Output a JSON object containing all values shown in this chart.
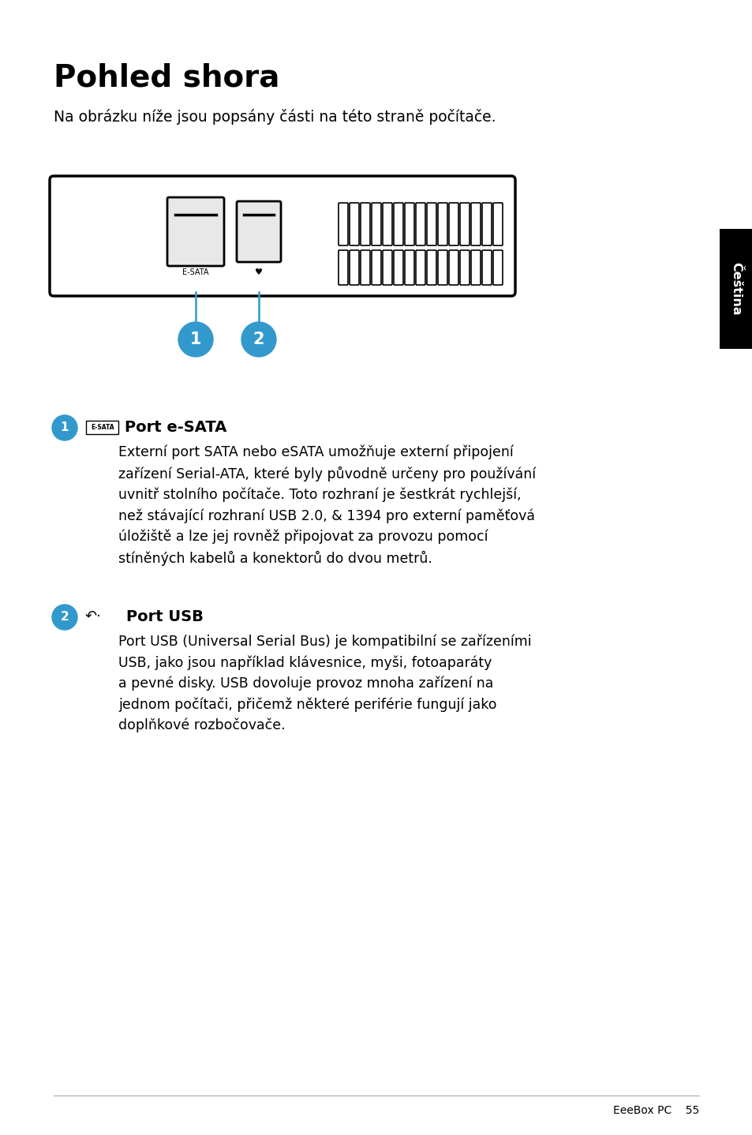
{
  "title": "Pohled shora",
  "subtitle": "Na obrázku níže jsou popsány části na této straně počítače.",
  "bg_color": "#ffffff",
  "page_width": 9.54,
  "page_height": 14.38,
  "tab_text": "Čeština",
  "tab_bg": "#000000",
  "tab_text_color": "#ffffff",
  "footer_text": "EeeBox PC    55",
  "section1_title": "Port e-SATA",
  "section1_body": "Externí port SATA nebo eSATA umožňuje externí připojení\nzařízení Serial-ATA, které byly původně určeny pro používání\nuvnitř stolního počítače. Toto rozhraní je šestkrát rychlejší,\nnež stávající rozhraní USB 2.0, & 1394 pro externí paměťová\núložiště a lze jej rovněž připojovat za provozu pomocí\nstíněných kabelů a konektorů do dvou metrů.",
  "section2_title": "Port USB",
  "section2_body": "Port USB (Universal Serial Bus) je kompatibilní se zařízeními\nUSB, jako jsou například klávesnice, myši, fotoaparáty\na pevné disky. USB dovoluje provoz mnoha zařízení na\njednom počítači, přičemž některé periférie fungují jako\ndoplňkové rozbočovače.",
  "badge_color": "#3399cc",
  "line_color": "#3399cc",
  "esata_label": "E-SATA",
  "usb_label": "♥"
}
